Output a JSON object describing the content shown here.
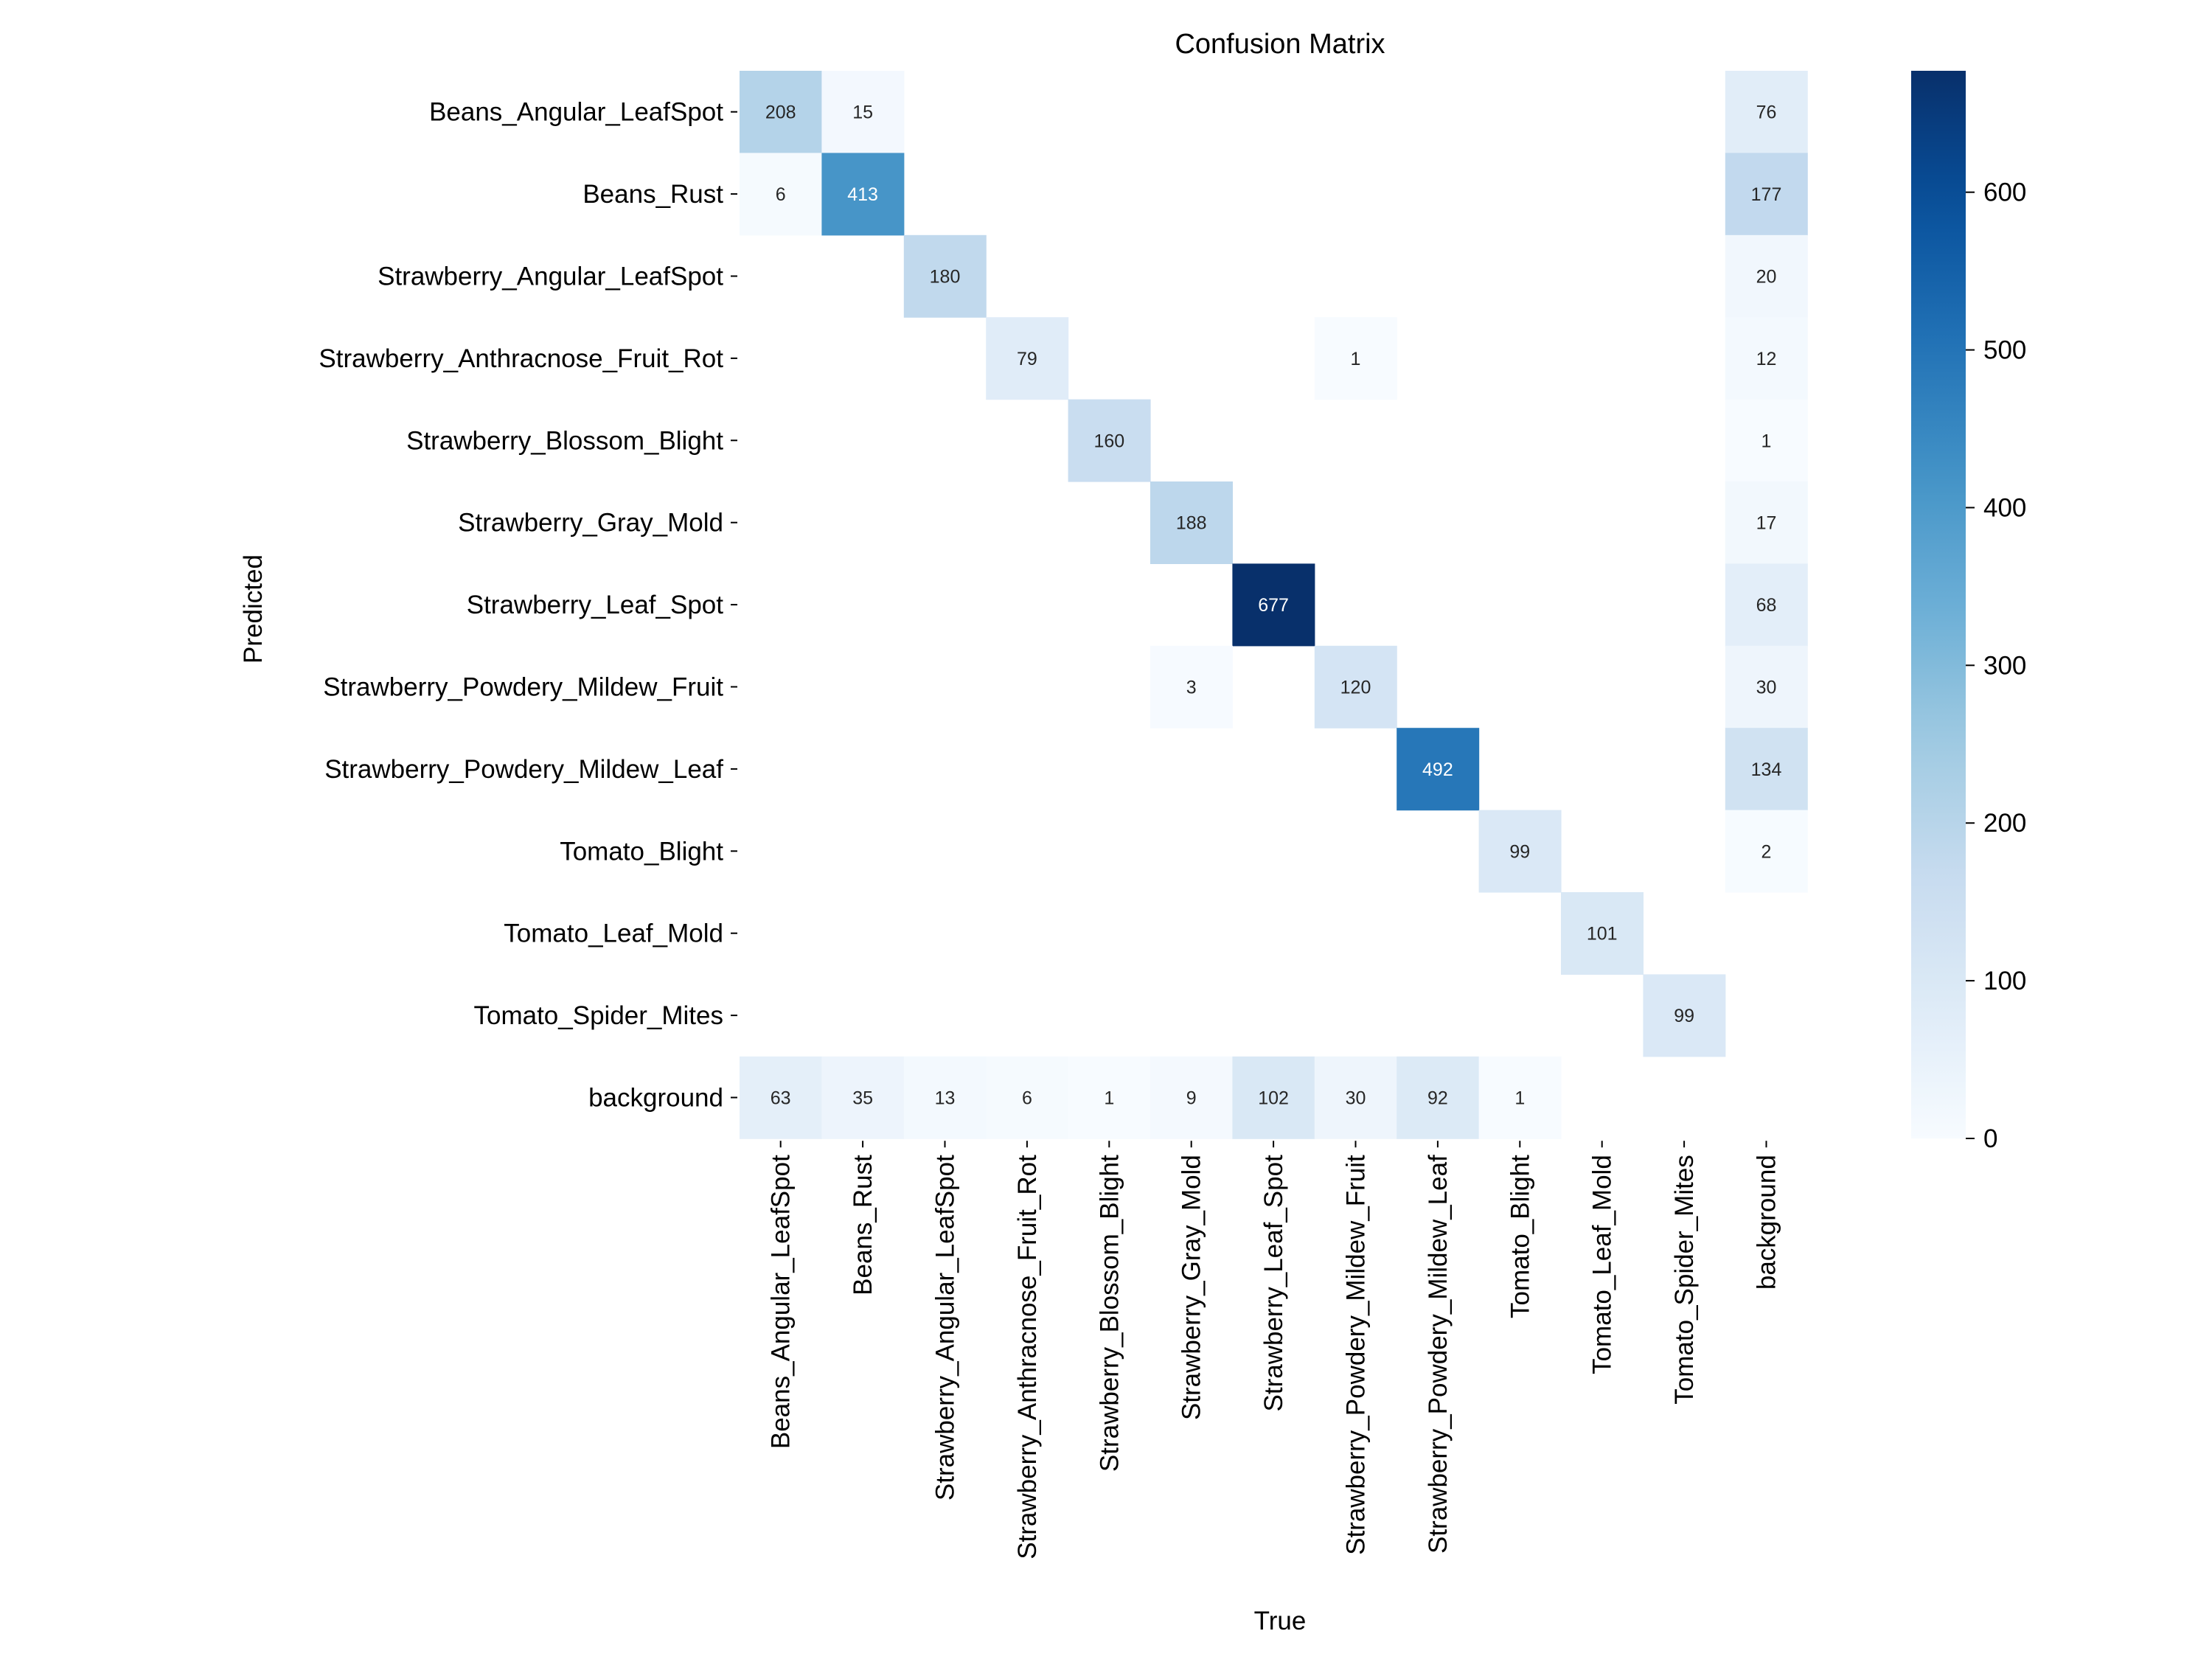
{
  "chart_data": {
    "type": "heatmap",
    "title": "Confusion Matrix",
    "xlabel": "True",
    "ylabel": "Predicted",
    "row_labels": [
      "Beans_Angular_LeafSpot",
      "Beans_Rust",
      "Strawberry_Angular_LeafSpot",
      "Strawberry_Anthracnose_Fruit_Rot",
      "Strawberry_Blossom_Blight",
      "Strawberry_Gray_Mold",
      "Strawberry_Leaf_Spot",
      "Strawberry_Powdery_Mildew_Fruit",
      "Strawberry_Powdery_Mildew_Leaf",
      "Tomato_Blight",
      "Tomato_Leaf_Mold",
      "Tomato_Spider_Mites",
      "background"
    ],
    "col_labels": [
      "Beans_Angular_LeafSpot",
      "Beans_Rust",
      "Strawberry_Angular_LeafSpot",
      "Strawberry_Anthracnose_Fruit_Rot",
      "Strawberry_Blossom_Blight",
      "Strawberry_Gray_Mold",
      "Strawberry_Leaf_Spot",
      "Strawberry_Powdery_Mildew_Fruit",
      "Strawberry_Powdery_Mildew_Leaf",
      "Tomato_Blight",
      "Tomato_Leaf_Mold",
      "Tomato_Spider_Mites",
      "background"
    ],
    "values": [
      [
        208,
        15,
        null,
        null,
        null,
        null,
        null,
        null,
        null,
        null,
        null,
        null,
        76
      ],
      [
        6,
        413,
        null,
        null,
        null,
        null,
        null,
        null,
        null,
        null,
        null,
        null,
        177
      ],
      [
        null,
        null,
        180,
        null,
        null,
        null,
        null,
        null,
        null,
        null,
        null,
        null,
        20
      ],
      [
        null,
        null,
        null,
        79,
        null,
        null,
        null,
        1,
        null,
        null,
        null,
        null,
        12
      ],
      [
        null,
        null,
        null,
        null,
        160,
        null,
        null,
        null,
        null,
        null,
        null,
        null,
        1
      ],
      [
        null,
        null,
        null,
        null,
        null,
        188,
        null,
        null,
        null,
        null,
        null,
        null,
        17
      ],
      [
        null,
        null,
        null,
        null,
        null,
        null,
        677,
        null,
        null,
        null,
        null,
        null,
        68
      ],
      [
        null,
        null,
        null,
        null,
        null,
        3,
        null,
        120,
        null,
        null,
        null,
        null,
        30
      ],
      [
        null,
        null,
        null,
        null,
        null,
        null,
        null,
        null,
        492,
        null,
        null,
        null,
        134
      ],
      [
        null,
        null,
        null,
        null,
        null,
        null,
        null,
        null,
        null,
        99,
        null,
        null,
        2
      ],
      [
        null,
        null,
        null,
        null,
        null,
        null,
        null,
        null,
        null,
        null,
        101,
        null,
        null
      ],
      [
        null,
        null,
        null,
        null,
        null,
        null,
        null,
        null,
        null,
        null,
        null,
        99,
        null
      ],
      [
        63,
        35,
        13,
        6,
        1,
        9,
        102,
        30,
        92,
        1,
        null,
        null,
        null
      ]
    ],
    "colorbar": {
      "colormap": "Blues",
      "vmin": 0,
      "vmax": 677,
      "ticks": [
        0,
        100,
        200,
        300,
        400,
        500,
        600
      ]
    },
    "grid": false
  }
}
